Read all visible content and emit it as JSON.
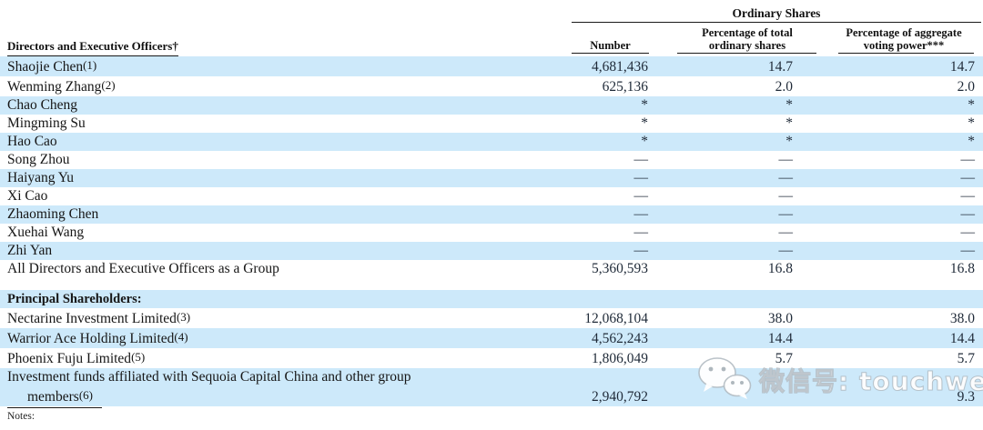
{
  "table": {
    "group_header": "Ordinary Shares",
    "left_header": "Directors and Executive Officers†",
    "columns": {
      "number": "Number",
      "pct_ordinary": [
        "Percentage of total",
        "ordinary shares"
      ],
      "pct_voting": [
        "Percentage of aggregate",
        "voting power***"
      ]
    },
    "sections": [
      {
        "rows": [
          {
            "name": "Shaojie Chen",
            "ref": "(1)",
            "number": "4,681,436",
            "pct_ordinary": "14.7",
            "pct_voting": "14.7"
          },
          {
            "name": "Wenming Zhang",
            "ref": "(2)",
            "number": "625,136",
            "pct_ordinary": "2.0",
            "pct_voting": "2.0"
          },
          {
            "name": "Chao Cheng",
            "ref": "",
            "number": "*",
            "pct_ordinary": "*",
            "pct_voting": "*"
          },
          {
            "name": "Mingming Su",
            "ref": "",
            "number": "*",
            "pct_ordinary": "*",
            "pct_voting": "*"
          },
          {
            "name": "Hao Cao",
            "ref": "",
            "number": "*",
            "pct_ordinary": "*",
            "pct_voting": "*"
          },
          {
            "name": "Song Zhou",
            "ref": "",
            "number": "—",
            "pct_ordinary": "—",
            "pct_voting": "—"
          },
          {
            "name": "Haiyang Yu",
            "ref": "",
            "number": "—",
            "pct_ordinary": "—",
            "pct_voting": "—"
          },
          {
            "name": "Xi Cao",
            "ref": "",
            "number": "—",
            "pct_ordinary": "—",
            "pct_voting": "—"
          },
          {
            "name": "Zhaoming Chen",
            "ref": "",
            "number": "—",
            "pct_ordinary": "—",
            "pct_voting": "—"
          },
          {
            "name": "Xuehai Wang",
            "ref": "",
            "number": "—",
            "pct_ordinary": "—",
            "pct_voting": "—"
          },
          {
            "name": "Zhi Yan",
            "ref": "",
            "number": "—",
            "pct_ordinary": "—",
            "pct_voting": "—"
          },
          {
            "name": "All Directors and Executive Officers as a Group",
            "ref": "",
            "number": "5,360,593",
            "pct_ordinary": "16.8",
            "pct_voting": "16.8"
          }
        ]
      },
      {
        "header": "Principal Shareholders:",
        "rows": [
          {
            "name": "Nectarine Investment Limited",
            "ref": "(3)",
            "number": "12,068,104",
            "pct_ordinary": "38.0",
            "pct_voting": "38.0"
          },
          {
            "name": "Warrior Ace Holding Limited",
            "ref": "(4)",
            "number": "4,562,243",
            "pct_ordinary": "14.4",
            "pct_voting": "14.4"
          },
          {
            "name": "Phoenix Fuju Limited",
            "ref": "(5)",
            "number": "1,806,049",
            "pct_ordinary": "5.7",
            "pct_voting": "5.7"
          },
          {
            "name": "Investment funds affiliated with Sequoia Capital China and other group",
            "name_line2": "members",
            "ref": "(6)",
            "number": "2,940,792",
            "pct_ordinary": "",
            "pct_voting": "9.3",
            "tall": true
          }
        ]
      }
    ]
  },
  "footer": {
    "notes_label": "Notes:"
  },
  "watermark": {
    "label": "微信号: touchweb",
    "icon": "wechat-icon"
  },
  "colors": {
    "stripe": "#cde9fa",
    "rule": "#1a1a1a",
    "number_text": "#1f2a38"
  }
}
